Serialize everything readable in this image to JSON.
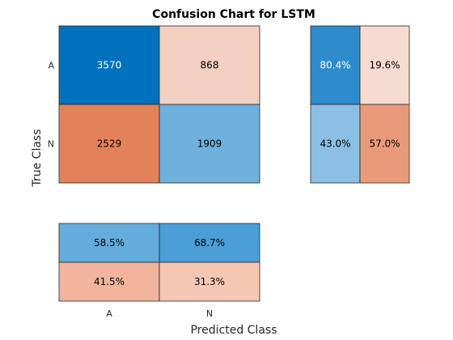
{
  "chart_data": {
    "type": "heatmap",
    "title": "Confusion Chart for LSTM",
    "xlabel": "Predicted Class",
    "ylabel": "True Class",
    "classes": [
      "A",
      "N"
    ],
    "matrix": {
      "rows": [
        "A",
        "N"
      ],
      "cols": [
        "A",
        "N"
      ],
      "values": [
        [
          3570,
          868
        ],
        [
          2529,
          1909
        ]
      ],
      "colors": [
        [
          "#0072bd",
          "#f3d0c0"
        ],
        [
          "#e3825a",
          "#6fb0dc"
        ]
      ],
      "text_colors": [
        [
          "#ffffff",
          "#000000"
        ],
        [
          "#000000",
          "#000000"
        ]
      ]
    },
    "row_summary": {
      "labels": [
        [
          "80.4%",
          "19.6%"
        ],
        [
          "43.0%",
          "57.0%"
        ]
      ],
      "values": [
        [
          80.4,
          19.6
        ],
        [
          43.0,
          57.0
        ]
      ],
      "colors": [
        [
          "#2e8bcc",
          "#f6dbd0"
        ],
        [
          "#8bbfe3",
          "#e99a7b"
        ]
      ],
      "text_colors": [
        [
          "#ffffff",
          "#000000"
        ],
        [
          "#000000",
          "#000000"
        ]
      ]
    },
    "column_summary": {
      "labels": [
        [
          "58.5%",
          "68.7%"
        ],
        [
          "41.5%",
          "31.3%"
        ]
      ],
      "values": [
        [
          58.5,
          68.7
        ],
        [
          41.5,
          31.3
        ]
      ],
      "colors": [
        [
          "#64acdb",
          "#4b9ed6"
        ],
        [
          "#f0b59c",
          "#f4c7b2"
        ]
      ],
      "text_colors": [
        [
          "#000000",
          "#000000"
        ],
        [
          "#000000",
          "#000000"
        ]
      ]
    }
  }
}
